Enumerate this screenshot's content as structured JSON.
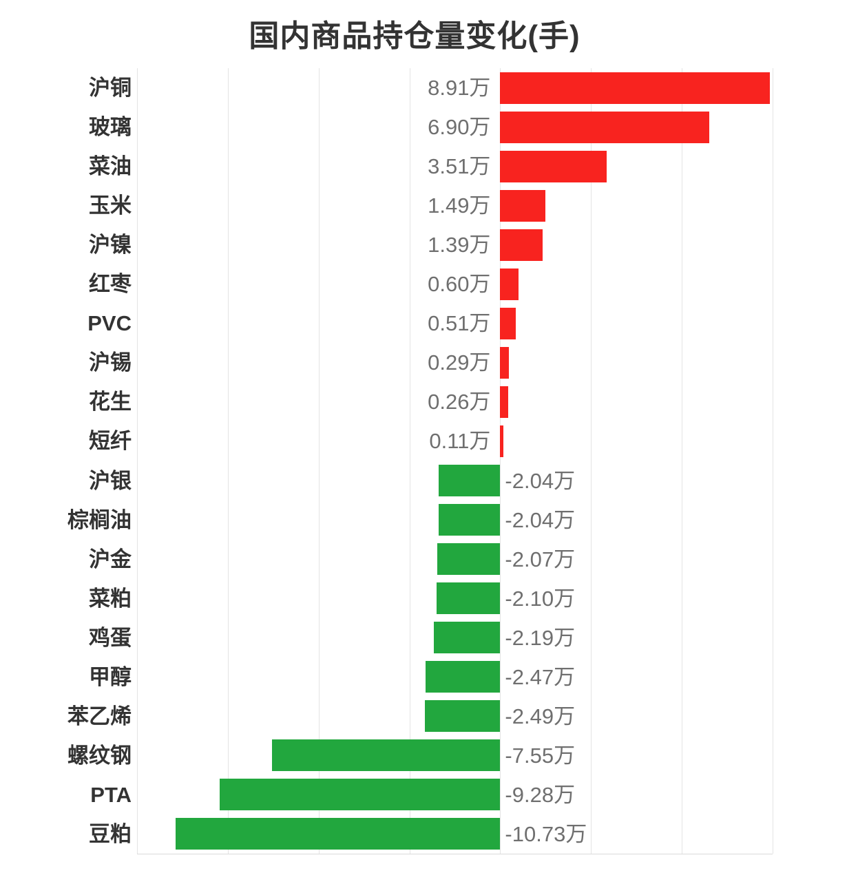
{
  "chart_data": {
    "type": "bar",
    "orientation": "horizontal",
    "title": "国内商品持仓量变化(手)",
    "categories": [
      "沪铜",
      "玻璃",
      "菜油",
      "玉米",
      "沪镍",
      "红枣",
      "PVC",
      "沪锡",
      "花生",
      "短纤",
      "沪银",
      "棕榈油",
      "沪金",
      "菜粕",
      "鸡蛋",
      "甲醇",
      "苯乙烯",
      "螺纹钢",
      "PTA",
      "豆粕"
    ],
    "values": [
      8.91,
      6.9,
      3.51,
      1.49,
      1.39,
      0.6,
      0.51,
      0.29,
      0.26,
      0.11,
      -2.04,
      -2.04,
      -2.07,
      -2.1,
      -2.19,
      -2.47,
      -2.49,
      -7.55,
      -9.28,
      -10.73
    ],
    "value_labels": [
      "8.91万",
      "6.90万",
      "3.51万",
      "1.49万",
      "1.39万",
      "0.60万",
      "0.51万",
      "0.29万",
      "0.26万",
      "0.11万",
      "-2.04万",
      "-2.04万",
      "-2.07万",
      "-2.10万",
      "-2.19万",
      "-2.47万",
      "-2.49万",
      "-7.55万",
      "-9.28万",
      "-10.73万"
    ],
    "unit": "万手",
    "xlim": [
      -12,
      9
    ],
    "gridline_step": 3,
    "grid": true,
    "legend": false,
    "colors": {
      "positive_bar": "#f8231f",
      "negative_bar": "#22a73e",
      "title_text": "#333333",
      "category_text": "#333333",
      "value_text": "#6f6f6f",
      "gridline": "#e4e4e4",
      "axis_line": "#d9d9d9"
    }
  }
}
